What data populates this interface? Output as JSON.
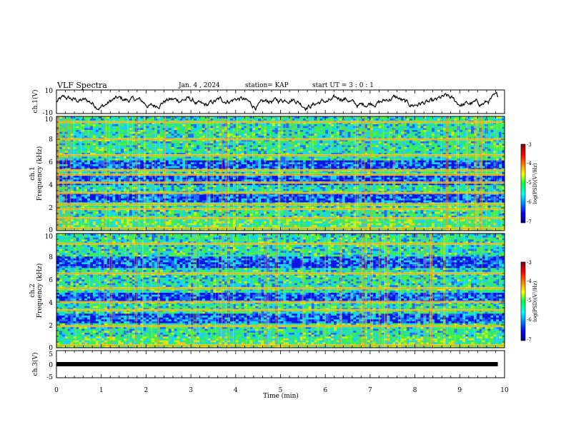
{
  "header": {
    "title": "VLF Spectra",
    "date": "Jan. 4 , 2024",
    "station": "station= KAP",
    "start": "start UT = 3 : 0 : 1"
  },
  "chart_data": [
    {
      "type": "line",
      "panel": "ch1-waveform",
      "ylabel": "ch.1(V)",
      "xlim": [
        0,
        10
      ],
      "ylim": [
        -10,
        10
      ],
      "ytick_labels": [
        "10",
        "-10"
      ],
      "approx_mean": 0,
      "approx_amplitude": 4,
      "x_end": 9.85
    },
    {
      "type": "heatmap",
      "panel": "ch1-spectrogram",
      "ylabel": "Frequency (kHz)",
      "channel_label": "ch.1",
      "xlim": [
        0,
        10
      ],
      "ylim": [
        0,
        10
      ],
      "ytick_labels": [
        "0",
        "2",
        "4",
        "6",
        "8",
        "10"
      ],
      "colorbar": {
        "label": "log(PSD)(V²/Hz)",
        "range": [
          -7,
          -3
        ],
        "tick_labels": [
          "-3",
          "-4",
          "-5",
          "-6",
          "-7"
        ]
      },
      "bands_khz": [
        0.2,
        1.1,
        1.9,
        2.3,
        3.3,
        4.2,
        4.9,
        5.3,
        6.6,
        8.0,
        9.5
      ],
      "low_bands_khz": [
        2.9,
        4.5,
        5.8
      ]
    },
    {
      "type": "heatmap",
      "panel": "ch2-spectrogram",
      "ylabel": "Frequency (kHz)",
      "channel_label": "ch.2",
      "xlim": [
        0,
        10
      ],
      "ylim": [
        0,
        10
      ],
      "ytick_labels": [
        "0",
        "2",
        "4",
        "6",
        "8",
        "10"
      ],
      "colorbar": {
        "label": "log(PSD)(V²/Hz)",
        "range": [
          -7,
          -3
        ],
        "tick_labels": [
          "-3",
          "-4",
          "-5",
          "-6",
          "-7"
        ]
      },
      "bands_khz": [
        0.2,
        1.9,
        3.3,
        4.0,
        5.2,
        6.5,
        9.1
      ],
      "low_bands_khz": [
        2.6,
        4.4,
        7.5
      ]
    },
    {
      "type": "line",
      "panel": "ch3-waveform",
      "ylabel": "ch.3(V)",
      "xlim": [
        0,
        10
      ],
      "ylim": [
        -5,
        5
      ],
      "ytick_labels": [
        "5",
        "0",
        "-5"
      ],
      "values_constant": 0
    }
  ],
  "xaxis": {
    "label": "Time (min)",
    "ticks": [
      "0",
      "1",
      "2",
      "3",
      "4",
      "5",
      "6",
      "7",
      "8",
      "9",
      "10"
    ]
  }
}
